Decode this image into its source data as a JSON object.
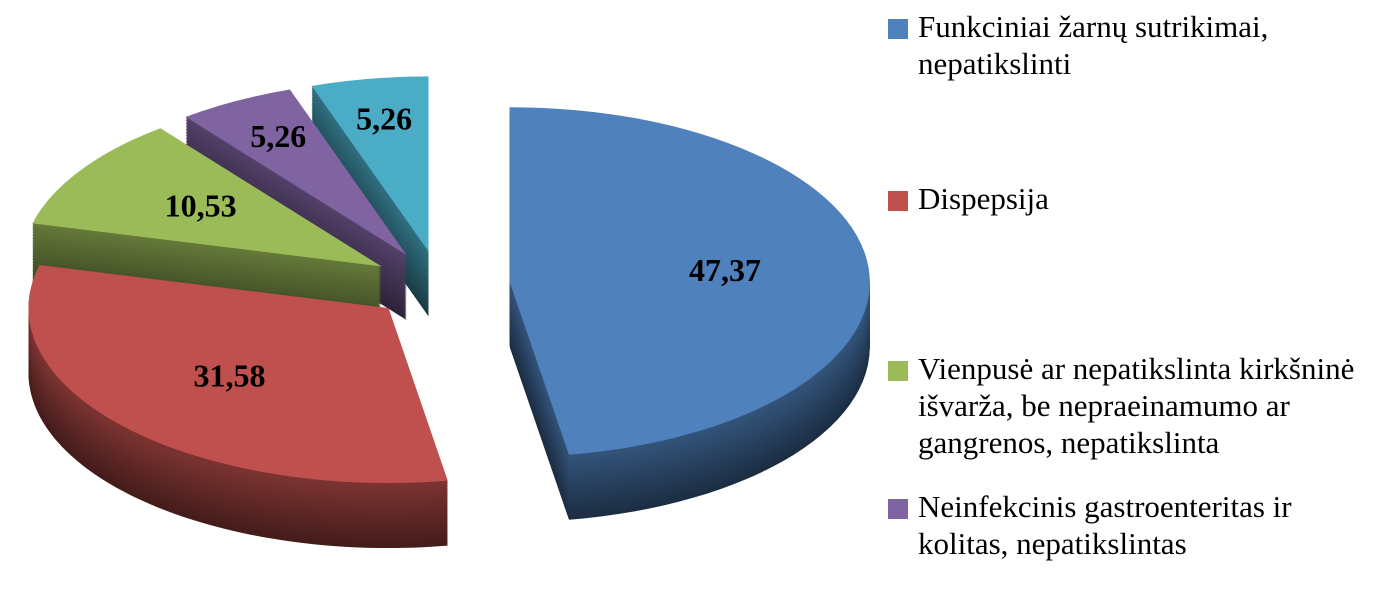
{
  "chart_data": {
    "type": "pie3d",
    "categories": [
      "Funkciniai žarnų sutrikimai, nepatikslinti",
      "Dispepsija",
      "Vienpusė ar nepatikslinta kirkšninė išvarža, be nepraeinamumo ar gangrenos, nepatikslinta",
      "Neinfekcinis gastroenteritas ir kolitas, nepatikslintas",
      null
    ],
    "values": [
      47.37,
      31.58,
      10.53,
      5.26,
      5.26
    ],
    "value_labels": [
      "47,37",
      "31,58",
      "10,53",
      "5,26",
      "5,26"
    ],
    "colors": [
      "#4f81bd",
      "#c0504d",
      "#9bbb59",
      "#8064a2",
      "#4bacc6"
    ],
    "legend": "right"
  }
}
